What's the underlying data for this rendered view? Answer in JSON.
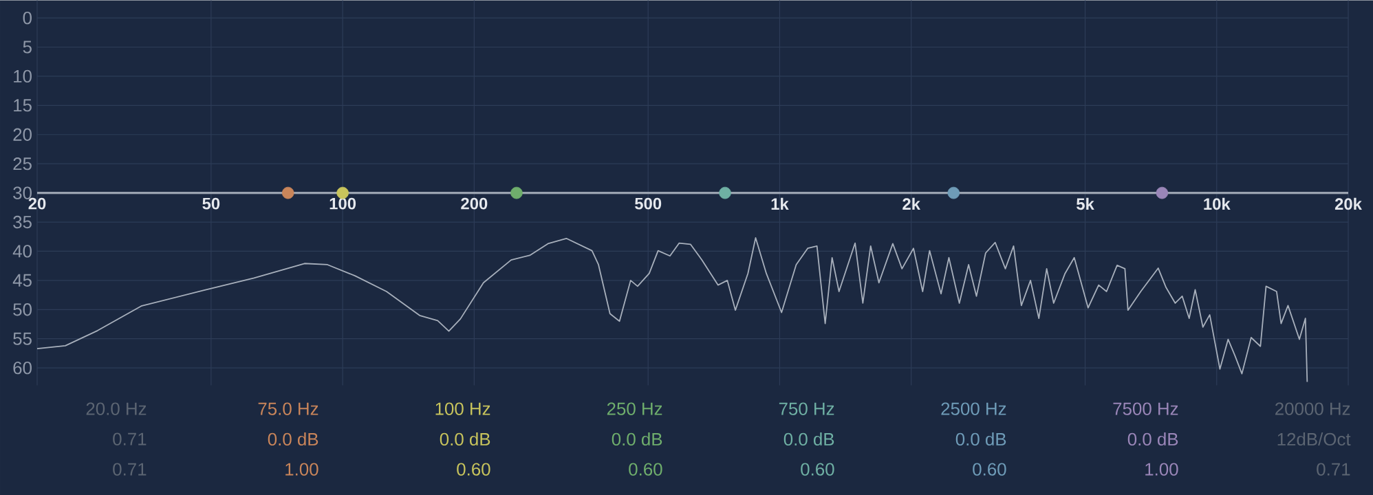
{
  "chart_data": {
    "type": "line",
    "log": "x",
    "grid": true,
    "xlim": [
      20,
      20000
    ],
    "ylim": [
      63,
      -3
    ],
    "xticks": [
      20,
      50,
      100,
      200,
      500,
      {
        "value": 1000,
        "label": "1k"
      },
      {
        "value": 2000,
        "label": "2k"
      },
      {
        "value": 5000,
        "label": "5k"
      },
      {
        "value": 10000,
        "label": "10k"
      },
      {
        "value": 20000,
        "label": "20k"
      }
    ],
    "yticks": [
      0,
      5,
      10,
      15,
      20,
      25,
      30,
      35,
      40,
      45,
      50,
      55,
      60
    ],
    "series": [
      {
        "color": "#a8b0bc",
        "x": [
          20,
          23.2,
          27.5,
          34.6,
          48,
          62.7,
          81.8,
          92.3,
          106.7,
          126,
          150,
          165,
          175,
          186,
          210,
          243,
          268,
          295,
          325,
          372,
          385,
          409,
          430,
          456,
          473,
          503,
          527,
          561,
          589,
          625,
          664,
          723,
          759,
          792,
          846,
          881,
          932,
          1010,
          1091,
          1159,
          1217,
          1271,
          1318,
          1367,
          1488,
          1550,
          1615,
          1687,
          1815,
          1905,
          2024,
          2124,
          2203,
          2340,
          2439,
          2577,
          2706,
          2820,
          2960,
          3113,
          3284,
          3430,
          3573,
          3750,
          3918,
          4083,
          4236,
          4498,
          4721,
          5078,
          5369,
          5597,
          5917,
          6166,
          6266,
          6702,
          7349,
          7657,
          8037,
          8337,
          8650,
          8928,
          9299,
          9640,
          10170,
          10620,
          11010,
          11420,
          11990,
          12590,
          12970,
          13710,
          14040,
          14560,
          15460,
          15960,
          16110
        ],
        "values": [
          56.7,
          56.2,
          53.6,
          49.4,
          46.7,
          44.6,
          42.1,
          42.3,
          44.2,
          46.9,
          51.0,
          51.9,
          53.7,
          51.6,
          45.4,
          41.5,
          40.7,
          38.7,
          37.8,
          39.9,
          42.3,
          50.7,
          52.0,
          45.0,
          46.0,
          43.8,
          39.9,
          40.8,
          38.6,
          38.8,
          41.5,
          45.8,
          45.0,
          50.1,
          43.8,
          37.7,
          43.8,
          50.5,
          42.3,
          39.5,
          39.1,
          52.4,
          41.1,
          46.9,
          38.6,
          48.9,
          39.1,
          45.4,
          38.7,
          43.0,
          39.5,
          46.9,
          39.9,
          47.3,
          41.1,
          48.9,
          42.3,
          47.7,
          40.3,
          38.5,
          43.0,
          39.1,
          49.3,
          45.0,
          51.5,
          43.0,
          48.9,
          43.8,
          41.1,
          49.7,
          45.8,
          46.9,
          42.4,
          43.0,
          50.1,
          46.9,
          42.9,
          46.2,
          48.9,
          47.7,
          51.5,
          46.6,
          53.0,
          50.9,
          60.2,
          55.1,
          57.9,
          61.0,
          54.8,
          56.3,
          46.0,
          46.9,
          52.4,
          49.3,
          55.1,
          51.5,
          62.4
        ]
      },
      {
        "color": "#9aa3b0",
        "x": [
          20,
          20000
        ],
        "values": [
          30,
          30
        ]
      },
      {
        "type": "scatter",
        "marker": "circle",
        "x": [
          75,
          100,
          250,
          750,
          2500,
          7500
        ],
        "values": [
          30,
          30,
          30,
          30,
          30,
          30
        ],
        "colors": [
          "#c9855a",
          "#c8c45c",
          "#6fae6c",
          "#6fb0a4",
          "#6f9cb8",
          "#9a86b8"
        ]
      }
    ],
    "annotations": [
      "20.0 Hz",
      "75.0 Hz",
      "100 Hz",
      "250 Hz",
      "750 Hz",
      "2500 Hz",
      "7500 Hz",
      "20000 Hz",
      "0.71",
      "0.0 dB",
      "0.0 dB",
      "0.0 dB",
      "0.0 dB",
      "0.0 dB",
      "0.0 dB",
      "12dB/Oct",
      "0.71",
      "1.00",
      "0.60",
      "0.60",
      "0.60",
      "0.60",
      "1.00",
      "0.71"
    ]
  }
}
